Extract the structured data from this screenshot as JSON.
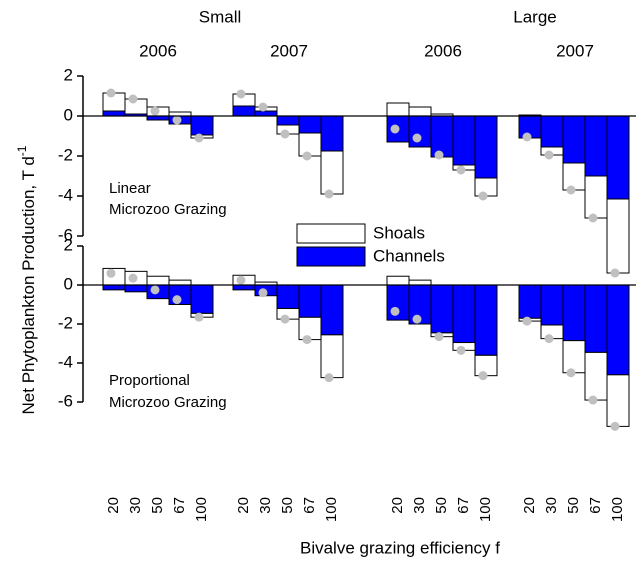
{
  "chart_data": {
    "type": "bar",
    "stacked": true,
    "ylabel": "Net Phytoplankton Production, T d",
    "ylabel_superscript": "-1",
    "xlabel": "Bivalve grazing efficiency f",
    "groups": [
      {
        "label": "Small",
        "years": [
          "2006",
          "2007"
        ]
      },
      {
        "label": "Large",
        "years": [
          "2006",
          "2007"
        ]
      }
    ],
    "categories": [
      "20",
      "30",
      "50",
      "67",
      "100"
    ],
    "ylim": [
      -6,
      2
    ],
    "yticks": [
      -6,
      -4,
      -2,
      0,
      2
    ],
    "total_color": "#c0c0c0",
    "legend": [
      {
        "name": "Shoals",
        "color": "#ffffff"
      },
      {
        "name": "Channels",
        "color": "#0000ff"
      }
    ],
    "panels": [
      {
        "annotation": [
          "Linear",
          "Microzoo Grazing"
        ],
        "series": [
          {
            "values": [
              [
                0.9,
                0.75,
                0.45,
                0.2,
                -0.15
              ],
              [
                0.6,
                0.2,
                -0.45,
                -1.15,
                -2.15
              ],
              [
                0.65,
                0.45,
                0.1,
                -0.25,
                -0.9
              ],
              [
                0.05,
                -0.4,
                -1.35,
                -2.1,
                -3.7
              ]
            ]
          },
          {
            "values": [
              [
                0.25,
                0.1,
                -0.2,
                -0.4,
                -0.95
              ],
              [
                0.5,
                0.25,
                -0.45,
                -0.85,
                -1.75
              ],
              [
                -1.3,
                -1.55,
                -2.05,
                -2.45,
                -3.1
              ],
              [
                -1.1,
                -1.55,
                -2.35,
                -3.0,
                -4.15
              ]
            ]
          }
        ]
      },
      {
        "annotation": [
          "Proportional",
          "Microzoo Grazing"
        ],
        "series": [
          {
            "values": [
              [
                0.85,
                0.7,
                0.45,
                0.25,
                -0.2
              ],
              [
                0.5,
                0.15,
                -0.55,
                -1.15,
                -2.2
              ],
              [
                0.45,
                0.25,
                -0.2,
                -0.4,
                -1.05
              ],
              [
                -0.15,
                -0.7,
                -1.65,
                -2.45,
                -2.65
              ]
            ]
          },
          {
            "values": [
              [
                -0.25,
                -0.35,
                -0.7,
                -1.0,
                -1.45
              ],
              [
                -0.25,
                -0.55,
                -1.2,
                -1.65,
                -2.55
              ],
              [
                -1.8,
                -2.0,
                -2.45,
                -2.95,
                -3.6
              ],
              [
                -1.7,
                -2.05,
                -2.85,
                -3.45,
                -4.6
              ]
            ]
          }
        ]
      }
    ]
  }
}
